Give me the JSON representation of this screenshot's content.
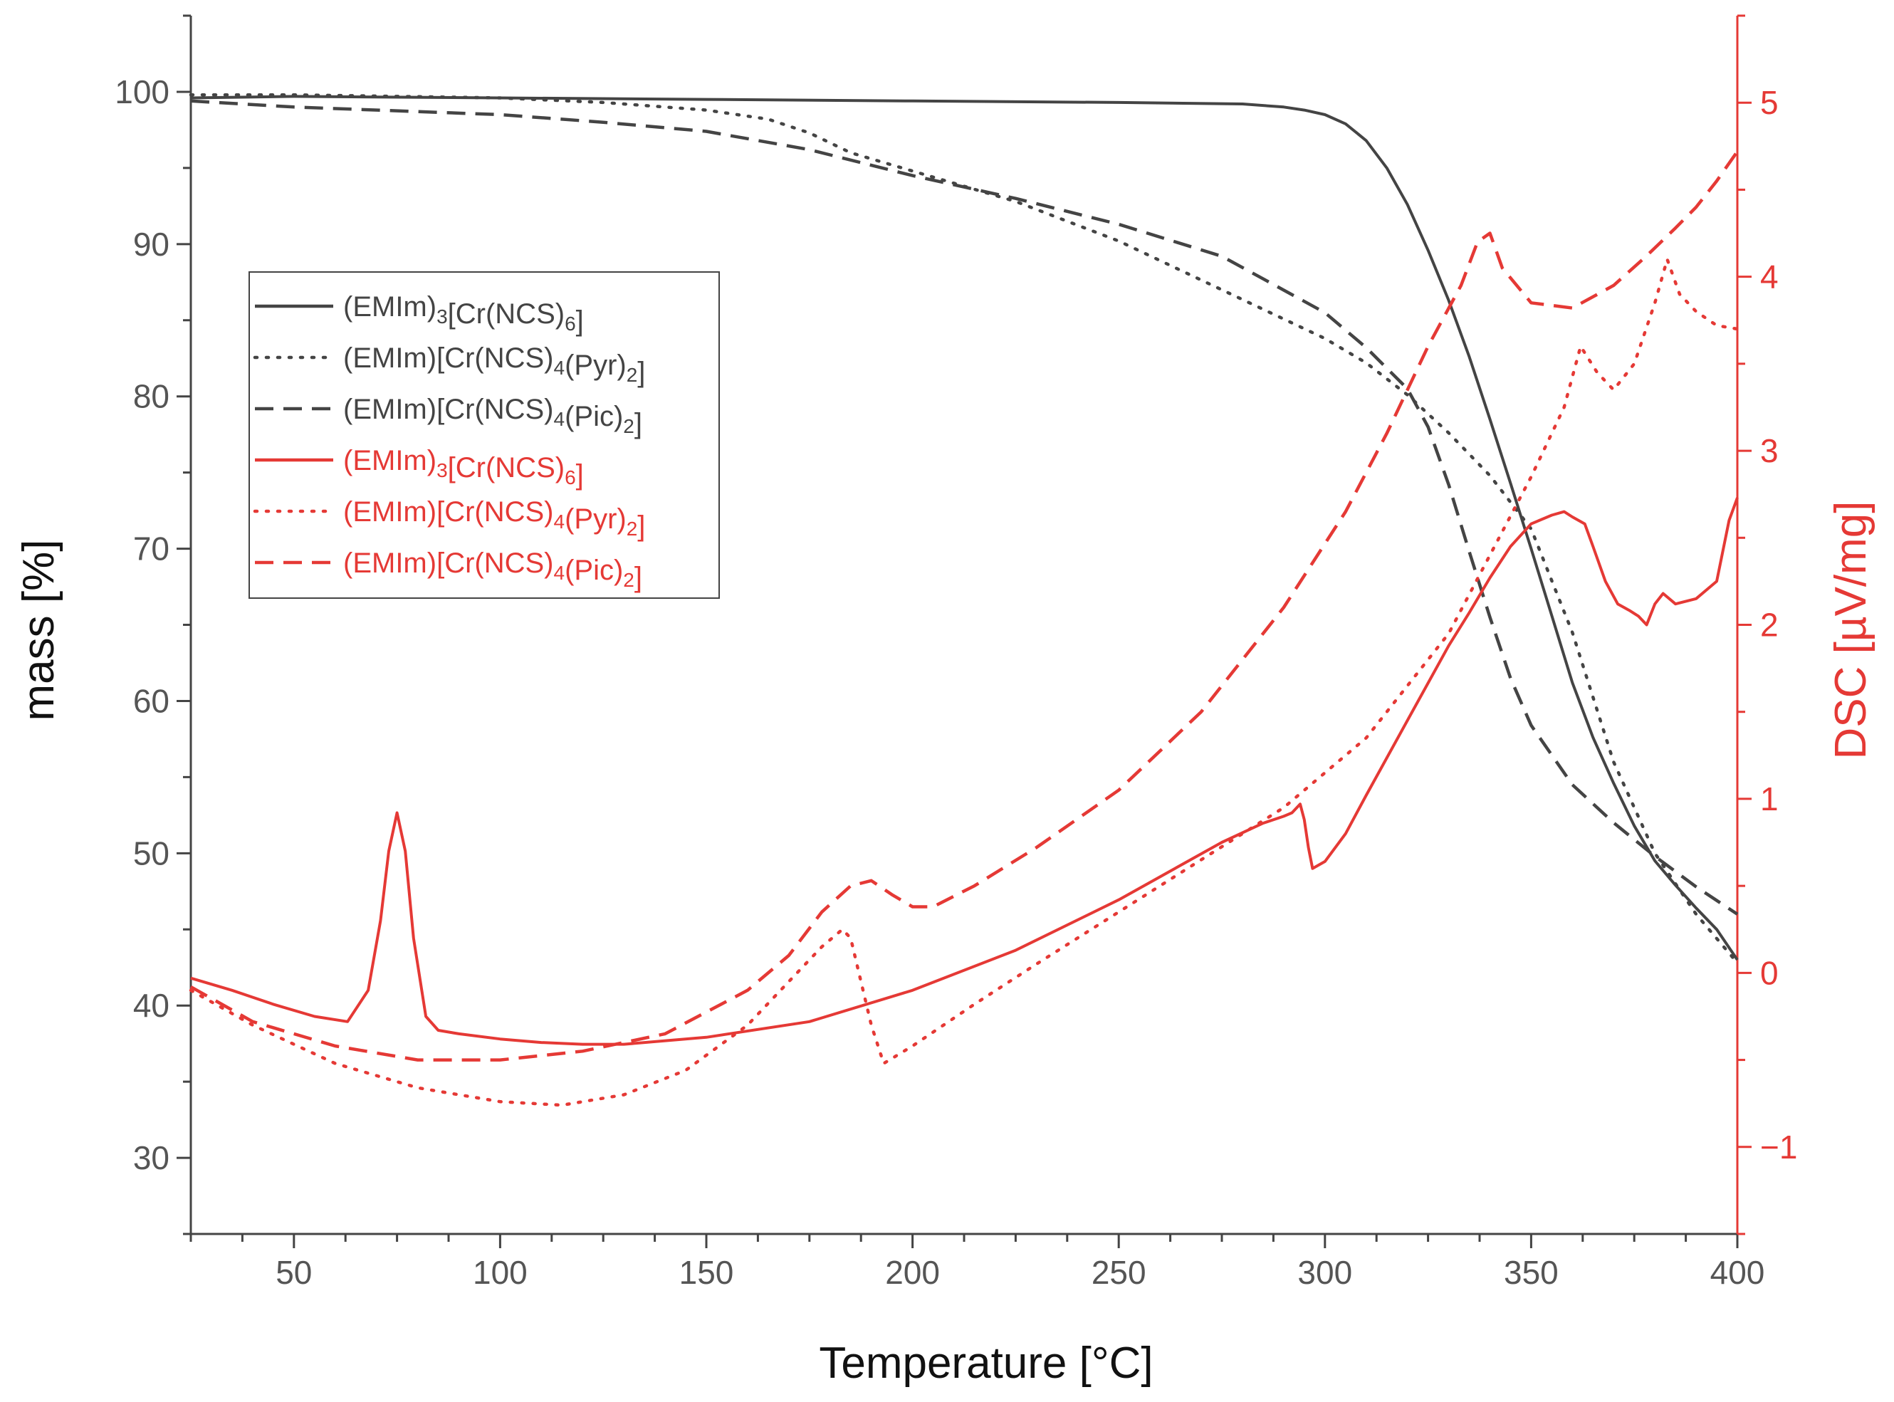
{
  "chart_data": {
    "type": "line",
    "title": "",
    "xlabel": "Temperature [°C]",
    "ylabel": "mass [%]",
    "y2label": "DSC [µV/mg]",
    "xlim": [
      25,
      400
    ],
    "ylim": [
      25,
      105
    ],
    "y2lim": [
      -1.5,
      5.5
    ],
    "grid": false,
    "legend_position": "upper-left",
    "x_ticks": [
      50,
      100,
      150,
      200,
      250,
      300,
      350,
      400
    ],
    "y_ticks": [
      30,
      40,
      50,
      60,
      70,
      80,
      90,
      100
    ],
    "y2_ticks": [
      -1,
      0,
      1,
      2,
      3,
      4,
      5
    ],
    "colors": {
      "tga": "#444444",
      "dsc": "#e53935"
    },
    "series": [
      {
        "name": "(EMIm)3[Cr(NCS)6]",
        "legend": {
          "base": "(EMIm)",
          "sub1": "3",
          "mid": "[Cr(NCS)",
          "sub2": "6",
          "end": "]"
        },
        "axis": "left",
        "color": "#444444",
        "style": "solid",
        "x": [
          25,
          50,
          100,
          150,
          200,
          250,
          280,
          290,
          295,
          300,
          305,
          310,
          315,
          320,
          325,
          330,
          335,
          340,
          345,
          350,
          355,
          360,
          365,
          370,
          375,
          380,
          385,
          390,
          395,
          400
        ],
        "y": [
          99.6,
          99.7,
          99.6,
          99.5,
          99.4,
          99.3,
          99.2,
          99.0,
          98.8,
          98.5,
          97.9,
          96.8,
          95.0,
          92.6,
          89.6,
          86.3,
          82.6,
          78.5,
          74.3,
          70.0,
          65.6,
          61.2,
          57.6,
          54.6,
          51.8,
          49.5,
          47.9,
          46.4,
          45.0,
          43.0
        ]
      },
      {
        "name": "(EMIm)[Cr(NCS)4(Pyr)2]",
        "legend": {
          "base": "(EMIm)[Cr(NCS)",
          "sub1": "4",
          "mid": "(Pyr)",
          "sub2": "2",
          "end": "]"
        },
        "axis": "left",
        "color": "#444444",
        "style": "dotted",
        "x": [
          25,
          50,
          100,
          125,
          150,
          165,
          175,
          185,
          200,
          225,
          250,
          275,
          300,
          310,
          320,
          330,
          340,
          350,
          360,
          370,
          380,
          390,
          400
        ],
        "y": [
          99.8,
          99.8,
          99.6,
          99.3,
          98.8,
          98.2,
          97.3,
          96.0,
          94.8,
          92.8,
          90.2,
          87.0,
          83.8,
          82.2,
          80.1,
          77.6,
          74.8,
          71.3,
          64.5,
          56.0,
          50.0,
          46.0,
          42.8
        ]
      },
      {
        "name": "(EMIm)[Cr(NCS)4(Pic)2]",
        "legend": {
          "base": "(EMIm)[Cr(NCS)",
          "sub1": "4",
          "mid": "(Pic)",
          "sub2": "2",
          "end": "]"
        },
        "axis": "left",
        "color": "#444444",
        "style": "dashed",
        "x": [
          25,
          50,
          100,
          125,
          150,
          175,
          200,
          225,
          250,
          275,
          300,
          310,
          320,
          325,
          330,
          335,
          340,
          345,
          350,
          360,
          370,
          380,
          390,
          400
        ],
        "y": [
          99.4,
          99.0,
          98.5,
          98.0,
          97.4,
          96.2,
          94.5,
          93.0,
          91.3,
          89.2,
          85.5,
          83.2,
          80.5,
          78.0,
          74.2,
          69.8,
          65.5,
          61.5,
          58.4,
          54.5,
          52.0,
          49.8,
          47.8,
          46.0
        ]
      },
      {
        "name": "(EMIm)3[Cr(NCS)6]",
        "legend": {
          "base": "(EMIm)",
          "sub1": "3",
          "mid": "[Cr(NCS)",
          "sub2": "6",
          "end": "]"
        },
        "axis": "right",
        "color": "#e53935",
        "style": "solid",
        "x": [
          25,
          35,
          45,
          55,
          63,
          68,
          71,
          73,
          75,
          77,
          79,
          82,
          85,
          90,
          100,
          110,
          120,
          130,
          150,
          175,
          200,
          225,
          250,
          275,
          285,
          290,
          292,
          294,
          295,
          296,
          297,
          300,
          305,
          310,
          320,
          330,
          335,
          340,
          345,
          350,
          355,
          358,
          360,
          363,
          365,
          368,
          371,
          374,
          376,
          378,
          380,
          382,
          385,
          390,
          395,
          398,
          400
        ],
        "y": [
          -0.03,
          -0.1,
          -0.18,
          -0.25,
          -0.28,
          -0.1,
          0.3,
          0.7,
          0.92,
          0.7,
          0.2,
          -0.25,
          -0.33,
          -0.35,
          -0.38,
          -0.4,
          -0.41,
          -0.41,
          -0.37,
          -0.28,
          -0.1,
          0.13,
          0.42,
          0.75,
          0.86,
          0.9,
          0.92,
          0.97,
          0.88,
          0.72,
          0.6,
          0.64,
          0.8,
          1.02,
          1.45,
          1.88,
          2.07,
          2.27,
          2.45,
          2.58,
          2.63,
          2.65,
          2.62,
          2.58,
          2.45,
          2.25,
          2.12,
          2.08,
          2.05,
          2.0,
          2.12,
          2.18,
          2.12,
          2.15,
          2.25,
          2.6,
          2.73
        ]
      },
      {
        "name": "(EMIm)[Cr(NCS)4(Pyr)2]",
        "legend": {
          "base": "(EMIm)[Cr(NCS)",
          "sub1": "4",
          "mid": "(Pyr)",
          "sub2": "2",
          "end": "]"
        },
        "axis": "right",
        "color": "#e53935",
        "style": "dotted",
        "x": [
          25,
          40,
          60,
          80,
          100,
          115,
          130,
          145,
          160,
          170,
          178,
          183,
          185,
          187,
          190,
          193,
          200,
          215,
          230,
          250,
          270,
          290,
          310,
          330,
          340,
          350,
          358,
          362,
          366,
          370,
          375,
          380,
          383,
          386,
          390,
          395,
          400
        ],
        "y": [
          -0.1,
          -0.3,
          -0.52,
          -0.66,
          -0.74,
          -0.76,
          -0.7,
          -0.56,
          -0.3,
          -0.05,
          0.15,
          0.25,
          0.2,
          0.0,
          -0.3,
          -0.52,
          -0.42,
          -0.18,
          0.05,
          0.35,
          0.65,
          0.95,
          1.35,
          1.95,
          2.4,
          2.85,
          3.25,
          3.6,
          3.45,
          3.35,
          3.5,
          3.85,
          4.1,
          3.9,
          3.8,
          3.72,
          3.7
        ]
      },
      {
        "name": "(EMIm)[Cr(NCS)4(Pic)2]",
        "legend": {
          "base": "(EMIm)[Cr(NCS)",
          "sub1": "4",
          "mid": "(Pic)",
          "sub2": "2",
          "end": "]"
        },
        "axis": "right",
        "color": "#e53935",
        "style": "dashed",
        "x": [
          25,
          40,
          60,
          80,
          100,
          120,
          140,
          160,
          170,
          178,
          185,
          190,
          195,
          200,
          205,
          215,
          230,
          250,
          270,
          290,
          305,
          315,
          325,
          333,
          337,
          340,
          343,
          350,
          360,
          370,
          378,
          385,
          390,
          395,
          400
        ],
        "y": [
          -0.08,
          -0.28,
          -0.42,
          -0.5,
          -0.5,
          -0.45,
          -0.35,
          -0.1,
          0.1,
          0.35,
          0.5,
          0.53,
          0.45,
          0.38,
          0.38,
          0.5,
          0.72,
          1.05,
          1.5,
          2.1,
          2.65,
          3.1,
          3.6,
          3.95,
          4.2,
          4.25,
          4.05,
          3.85,
          3.82,
          3.95,
          4.12,
          4.28,
          4.4,
          4.55,
          4.72
        ]
      }
    ]
  }
}
